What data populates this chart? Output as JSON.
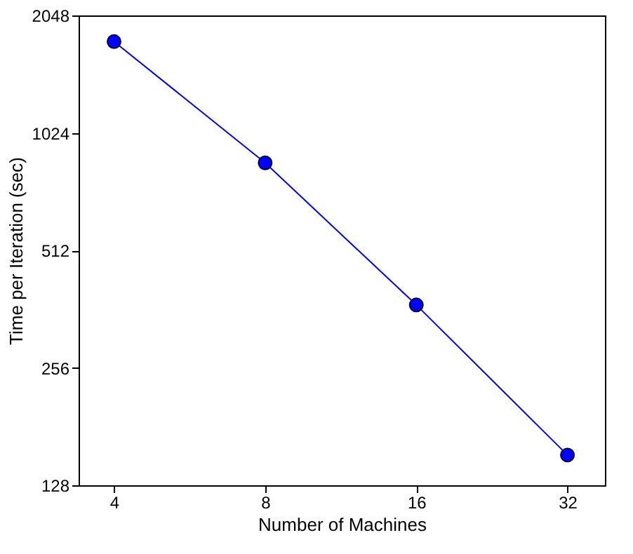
{
  "chart_data": {
    "type": "line",
    "xlabel": "Number of Machines",
    "ylabel": "Time per Iteration (sec)",
    "x": [
      4,
      8,
      16,
      32
    ],
    "series": [
      {
        "color": "#0000ff",
        "values": [
          1755,
          858,
          371,
          153
        ]
      }
    ],
    "log": "xy",
    "xlim": [
      3.4,
      38
    ],
    "xticks": [
      4,
      8,
      16,
      32
    ],
    "ylim": [
      128,
      2048
    ],
    "yticks": [
      128,
      256,
      512,
      1024,
      2048
    ],
    "grid": false,
    "marker": "circle",
    "line_style": "solid"
  }
}
